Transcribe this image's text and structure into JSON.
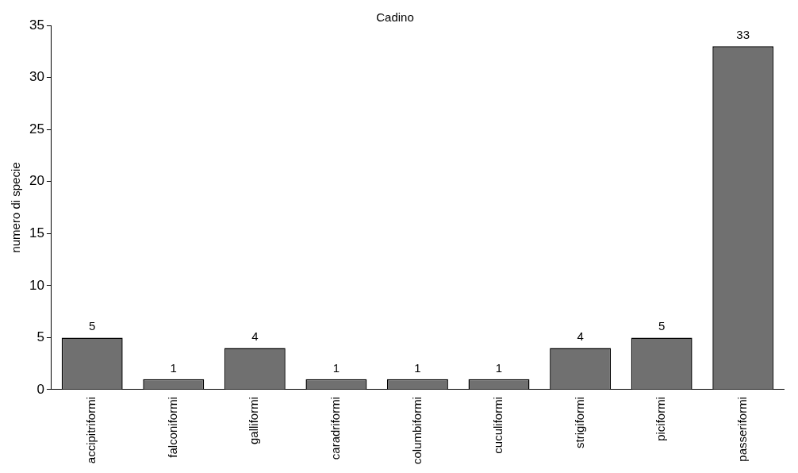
{
  "chart_data": {
    "type": "bar",
    "title": "Cadino",
    "ylabel": "numero di specie",
    "categories": [
      "accipitriformi",
      "falconiformi",
      "galliformi",
      "caradriformi",
      "columbiformi",
      "cuculiformi",
      "strigiformi",
      "piciformi",
      "passeriformi"
    ],
    "values": [
      5,
      1,
      4,
      1,
      1,
      1,
      4,
      5,
      33
    ],
    "color": "#707070",
    "ylim": [
      0,
      35
    ],
    "yticks": [
      0,
      5,
      10,
      15,
      20,
      25,
      30,
      35
    ],
    "grid": false,
    "legend": false,
    "data_labels": true
  }
}
